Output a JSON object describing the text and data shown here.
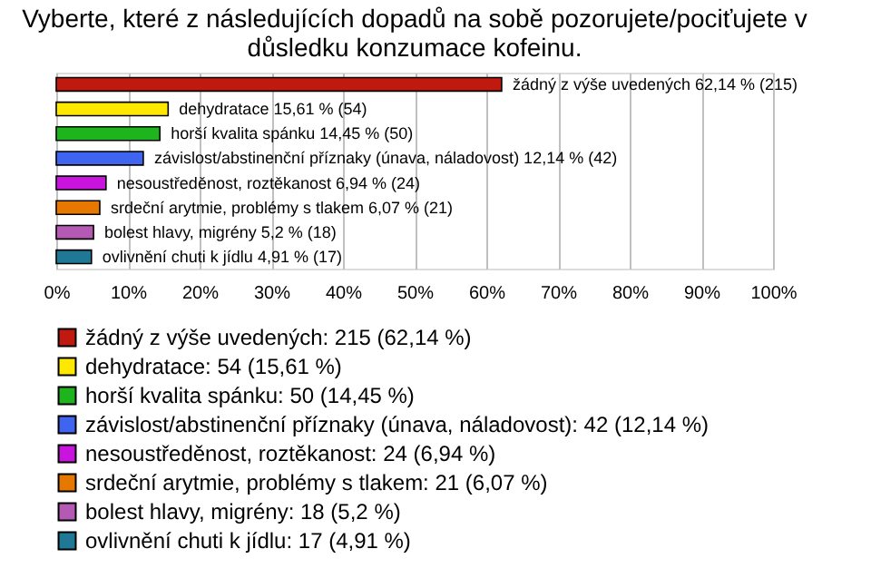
{
  "chart_data": {
    "type": "bar",
    "orientation": "horizontal",
    "title": "Vyberte, které z následujících dopadů na sobě pozorujete/pociťujete v důsledku konzumace kofeinu.",
    "categories": [
      null,
      null,
      null,
      null,
      null,
      null,
      null,
      null
    ],
    "series": [
      {
        "name": "žádný z výše uvedených: 215 (62,14 %)",
        "color": "#c0190f",
        "values": [
          62.14,
          null,
          null,
          null,
          null,
          null,
          null,
          null
        ],
        "value_labels": [
          "žádný z výše uvedených 62,14 % (215)",
          null,
          null,
          null,
          null,
          null,
          null,
          null
        ]
      },
      {
        "name": "dehydratace: 54 (15,61 %)",
        "color": "#ffe800",
        "values": [
          null,
          15.61,
          null,
          null,
          null,
          null,
          null,
          null
        ],
        "value_labels": [
          null,
          "dehydratace 15,61 % (54)",
          null,
          null,
          null,
          null,
          null,
          null
        ]
      },
      {
        "name": "horší kvalita spánku: 50 (14,45 %)",
        "color": "#1eb41e",
        "values": [
          null,
          null,
          14.45,
          null,
          null,
          null,
          null,
          null
        ],
        "value_labels": [
          null,
          null,
          "horší kvalita spánku 14,45 % (50)",
          null,
          null,
          null,
          null,
          null
        ]
      },
      {
        "name": "závislost/abstinenční příznaky (únava, náladovost): 42 (12,14 %)",
        "color": "#3f64f0",
        "values": [
          null,
          null,
          null,
          12.14,
          null,
          null,
          null,
          null
        ],
        "value_labels": [
          null,
          null,
          null,
          "závislost/abstinenční příznaky (únava, náladovost) 12,14 % (42)",
          null,
          null,
          null,
          null
        ]
      },
      {
        "name": "nesoustředěnost, roztěkanost: 24 (6,94 %)",
        "color": "#c814dc",
        "values": [
          null,
          null,
          null,
          null,
          6.94,
          null,
          null,
          null
        ],
        "value_labels": [
          null,
          null,
          null,
          null,
          "nesoustředěnost, roztěkanost 6,94 % (24)",
          null,
          null,
          null
        ]
      },
      {
        "name": "srdeční arytmie, problémy s tlakem: 21 (6,07 %)",
        "color": "#e67800",
        "values": [
          null,
          null,
          null,
          null,
          null,
          6.07,
          null,
          null
        ],
        "value_labels": [
          null,
          null,
          null,
          null,
          null,
          "srdeční arytmie, problémy s tlakem 6,07 % (21)",
          null,
          null
        ]
      },
      {
        "name": "bolest hlavy, migrény: 18 (5,2 %)",
        "color": "#b45ab4",
        "values": [
          null,
          null,
          null,
          null,
          null,
          null,
          5.2,
          null
        ],
        "value_labels": [
          null,
          null,
          null,
          null,
          null,
          null,
          "bolest hlavy, migrény 5,2 % (18)",
          null
        ]
      },
      {
        "name": "ovlivnění chuti k jídlu: 17 (4,91 %)",
        "color": "#1e7896",
        "values": [
          null,
          null,
          null,
          null,
          null,
          null,
          null,
          4.91
        ],
        "value_labels": [
          null,
          null,
          null,
          null,
          null,
          null,
          null,
          "ovlivnění chuti k jídlu 4,91 % (17)"
        ]
      }
    ],
    "xlim": [
      0,
      100
    ],
    "xticks": [
      {
        "value": 0,
        "label": "0%"
      },
      {
        "value": 10,
        "label": "10%"
      },
      {
        "value": 20,
        "label": "20%"
      },
      {
        "value": 30,
        "label": "30%"
      },
      {
        "value": 40,
        "label": "40%"
      },
      {
        "value": 50,
        "label": "50%"
      },
      {
        "value": 60,
        "label": "60%"
      },
      {
        "value": 70,
        "label": "70%"
      },
      {
        "value": 80,
        "label": "80%"
      },
      {
        "value": 90,
        "label": "90%"
      },
      {
        "value": 100,
        "label": "100%"
      }
    ],
    "grid": "x",
    "legend": "bottom",
    "tick_labels": "x"
  }
}
